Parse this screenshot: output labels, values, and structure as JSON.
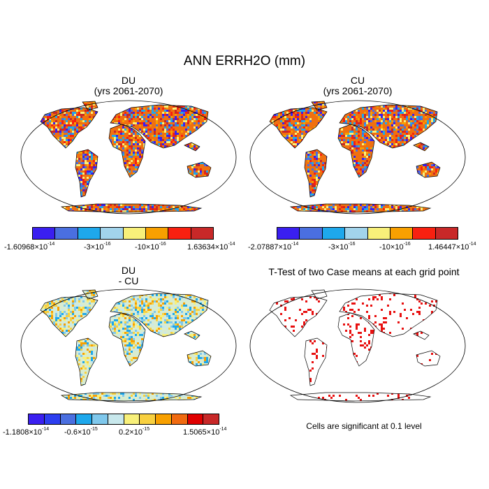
{
  "title": "ANN ERRH2O (mm)",
  "panels": {
    "du": {
      "title": "DU",
      "subtitle": "(yrs 2061-2070)"
    },
    "cu": {
      "title": "CU",
      "subtitle": "(yrs 2061-2070)"
    },
    "diff": {
      "title": "DU",
      "subtitle": "- CU"
    },
    "ttest": {
      "title": "T-Test of two Case means at each grid point",
      "note": "Cells are significant at 0.1 level"
    }
  },
  "colorbars": {
    "du": {
      "colors": [
        "#3a1ff0",
        "#4a6fe0",
        "#1ea8ec",
        "#a2d4ec",
        "#f8f07a",
        "#f8a000",
        "#f82010",
        "#c82828"
      ],
      "labels": [
        {
          "mant": "-1.60968",
          "exp": "-14"
        },
        {
          "mant": "-3",
          "exp": "-16"
        },
        {
          "mant": "-10",
          "exp": "-16"
        },
        {
          "mant": "1.63634",
          "exp": "-14"
        }
      ]
    },
    "cu": {
      "colors": [
        "#3a1ff0",
        "#4a6fe0",
        "#1ea8ec",
        "#a2d4ec",
        "#f8f07a",
        "#f8a000",
        "#f82010",
        "#c82828"
      ],
      "labels": [
        {
          "mant": "-2.07887",
          "exp": "-14"
        },
        {
          "mant": "-3",
          "exp": "-16"
        },
        {
          "mant": "-10",
          "exp": "-16"
        },
        {
          "mant": "1.46447",
          "exp": "-14"
        }
      ]
    },
    "diff": {
      "colors": [
        "#3a1ff0",
        "#2c3ef0",
        "#4a6fe0",
        "#1ea8ec",
        "#7fc8ec",
        "#c8e8ec",
        "#f8f07a",
        "#f8d040",
        "#f8a000",
        "#f06a10",
        "#e00000",
        "#c82828"
      ],
      "labels": [
        {
          "mant": "-1.1808",
          "exp": "-14"
        },
        {
          "mant": "-0.6",
          "exp": "-15"
        },
        {
          "mant": "0.2",
          "exp": "-15"
        },
        {
          "mant": "1.5065",
          "exp": "-14"
        }
      ]
    }
  },
  "times": "×10"
}
